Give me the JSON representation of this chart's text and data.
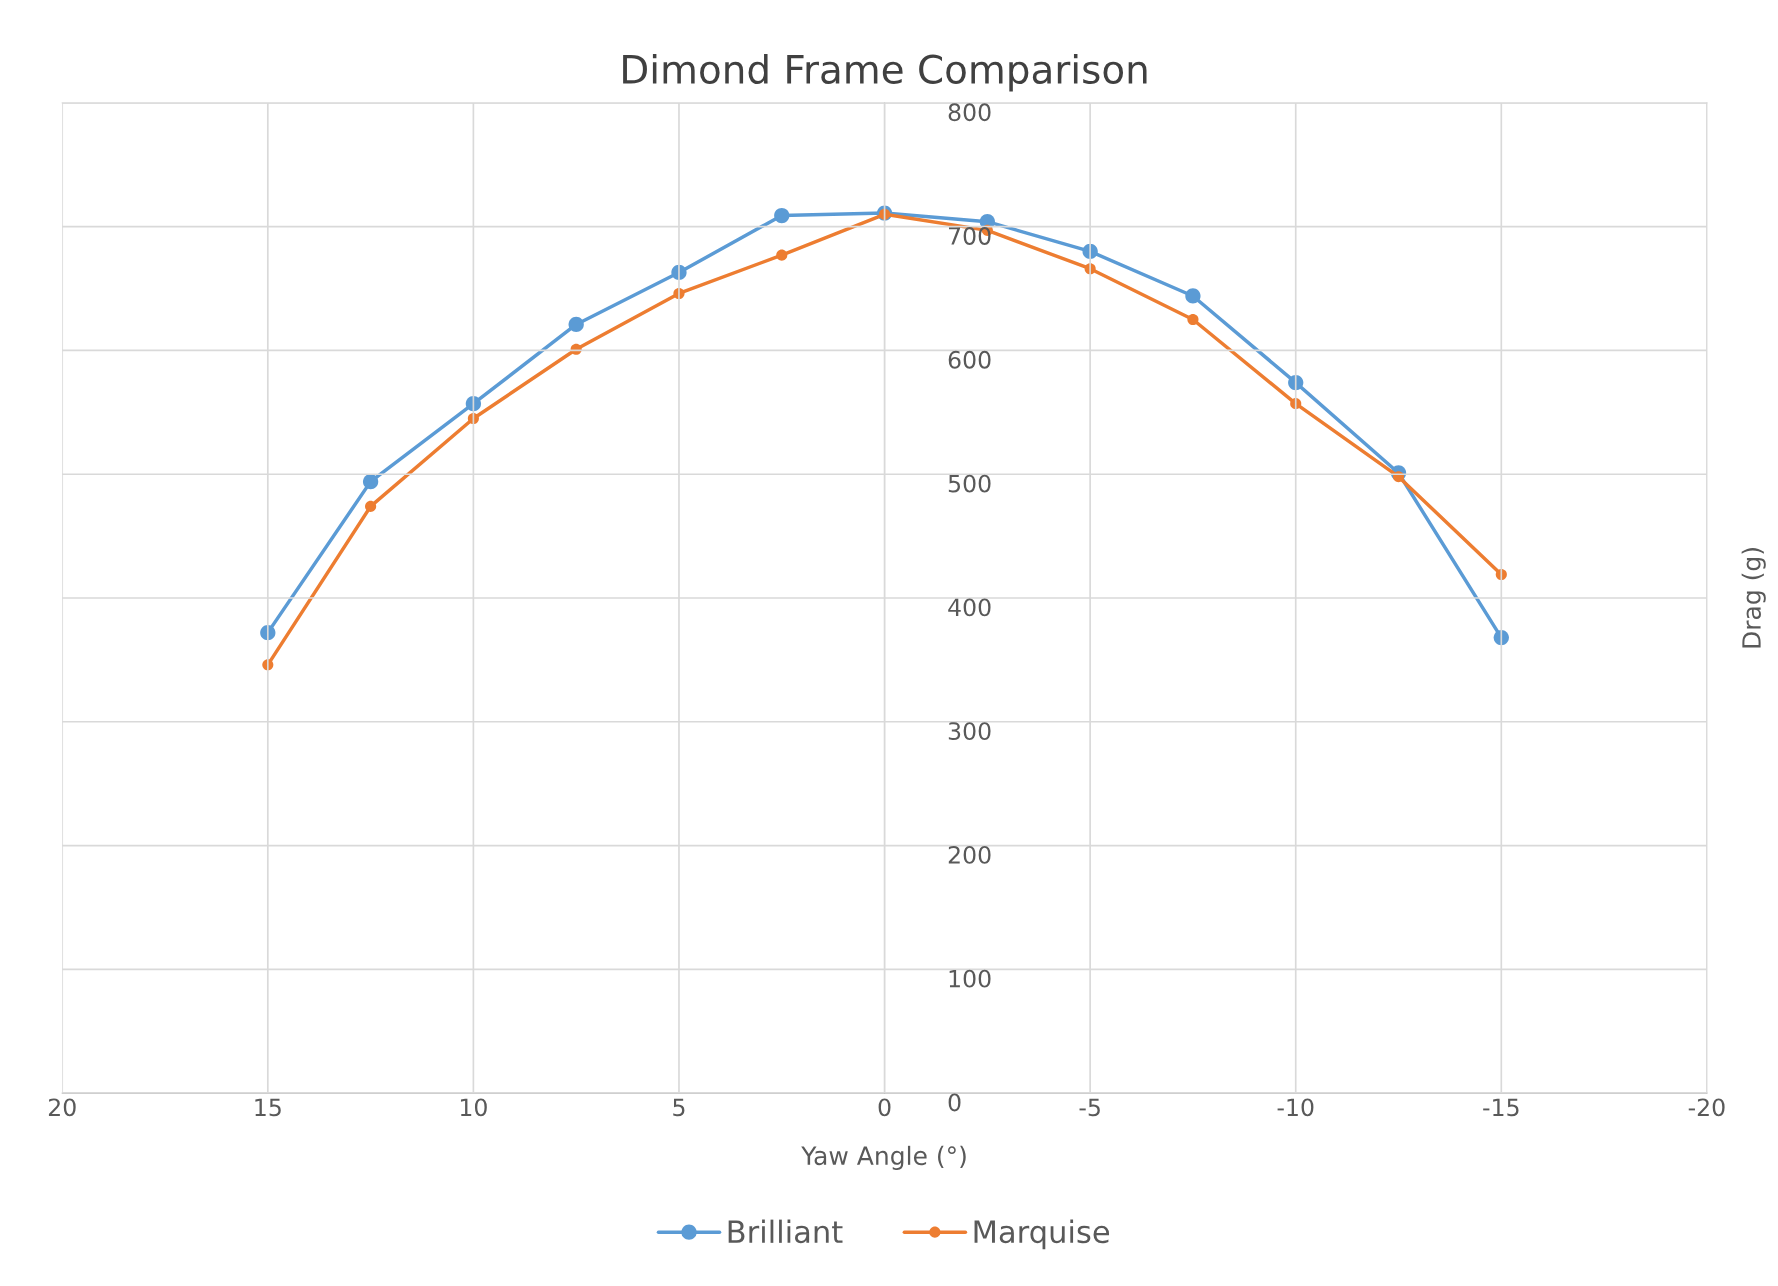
{
  "chart_data": {
    "type": "line",
    "title": "Dimond Frame Comparison",
    "xlabel": "Yaw Angle (°)",
    "ylabel": "Drag (g)",
    "x": [
      15,
      12.5,
      10,
      7.5,
      5,
      2.5,
      0,
      -2.5,
      -5,
      -7.5,
      -10,
      -12.5,
      -15
    ],
    "series": [
      {
        "name": "Brilliant",
        "color": "#5b9bd5",
        "values": [
          372,
          494,
          557,
          621,
          663,
          709,
          711,
          704,
          680,
          644,
          574,
          501,
          368
        ]
      },
      {
        "name": "Marquise",
        "color": "#ed7d31",
        "values": [
          346,
          474,
          545,
          601,
          646,
          677,
          710,
          697,
          666,
          625,
          557,
          498,
          419
        ]
      }
    ],
    "xlim": [
      20,
      -20
    ],
    "xticks": [
      20,
      15,
      10,
      5,
      0,
      -5,
      -10,
      -15,
      -20
    ],
    "ylim": [
      0,
      800
    ],
    "yticks": [
      0,
      100,
      200,
      300,
      400,
      500,
      600,
      700,
      800
    ],
    "grid": true,
    "legend": "bottom",
    "marker": "circle",
    "line_style": "solid"
  }
}
